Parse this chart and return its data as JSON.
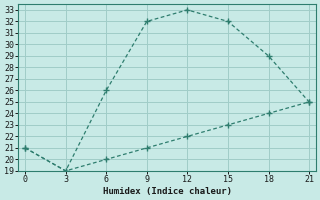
{
  "line1_x": [
    0,
    3,
    6,
    9,
    12,
    15,
    18,
    21
  ],
  "line1_y": [
    21,
    19,
    26,
    32,
    33,
    32,
    29,
    25
  ],
  "line2_x": [
    0,
    3,
    6,
    9,
    12,
    15,
    18,
    21
  ],
  "line2_y": [
    21,
    19,
    20,
    21,
    22,
    23,
    24,
    25
  ],
  "line_color": "#2e7d6e",
  "bg_color": "#c8eae6",
  "grid_color": "#a0cdc8",
  "xlabel": "Humidex (Indice chaleur)",
  "xlim": [
    -0.5,
    21.5
  ],
  "ylim": [
    19,
    33.5
  ],
  "xticks": [
    0,
    3,
    6,
    9,
    12,
    15,
    18,
    21
  ],
  "yticks": [
    19,
    20,
    21,
    22,
    23,
    24,
    25,
    26,
    27,
    28,
    29,
    30,
    31,
    32,
    33
  ]
}
